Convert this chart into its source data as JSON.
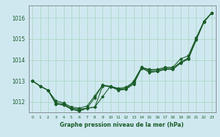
{
  "title": "Graphe pression niveau de la mer (hPa)",
  "background_color": "#cfe8f0",
  "grid_color": "#b0d8c8",
  "line_color": "#1a5c28",
  "xlabel_color": "#1a5c28",
  "xlim": [
    -0.5,
    23.5
  ],
  "ylim": [
    1011.5,
    1016.6
  ],
  "yticks": [
    1012,
    1013,
    1014,
    1015,
    1016
  ],
  "xticks": [
    0,
    1,
    2,
    3,
    4,
    5,
    6,
    7,
    8,
    9,
    10,
    11,
    12,
    13,
    14,
    15,
    16,
    17,
    18,
    19,
    20,
    21,
    22,
    23
  ],
  "series1": [
    1013.0,
    1012.75,
    1012.55,
    1012.05,
    1011.95,
    1011.75,
    1011.7,
    1011.8,
    1012.3,
    1012.8,
    1012.75,
    1012.65,
    1012.7,
    1012.95,
    1013.65,
    1013.55,
    1013.55,
    1013.65,
    1013.65,
    1014.05,
    1014.2,
    1015.05,
    1015.85,
    1016.25
  ],
  "series2": [
    1013.0,
    1012.75,
    1012.55,
    1011.9,
    1011.85,
    1011.65,
    1011.6,
    1011.7,
    1011.75,
    1012.25,
    1012.75,
    1012.55,
    1012.6,
    1012.85,
    1013.6,
    1013.45,
    1013.45,
    1013.55,
    1013.55,
    1013.85,
    1014.05,
    1014.95,
    1015.8,
    1016.25
  ],
  "series3": [
    1013.0,
    1012.75,
    1012.55,
    1011.95,
    1011.9,
    1011.7,
    1011.65,
    1011.7,
    1011.75,
    1012.75,
    1012.75,
    1012.6,
    1012.65,
    1012.9,
    1013.65,
    1013.5,
    1013.5,
    1013.6,
    1013.6,
    1013.9,
    1014.1,
    1015.0,
    1015.82,
    1016.25
  ],
  "series4": [
    1013.0,
    1012.75,
    1012.55,
    1011.9,
    1011.85,
    1011.65,
    1011.55,
    1011.7,
    1012.2,
    1012.8,
    1012.7,
    1012.6,
    1012.6,
    1013.0,
    1013.65,
    1013.4,
    1013.45,
    1013.55,
    1013.55,
    1013.85,
    1014.05,
    1014.95,
    1015.82,
    1016.25
  ]
}
